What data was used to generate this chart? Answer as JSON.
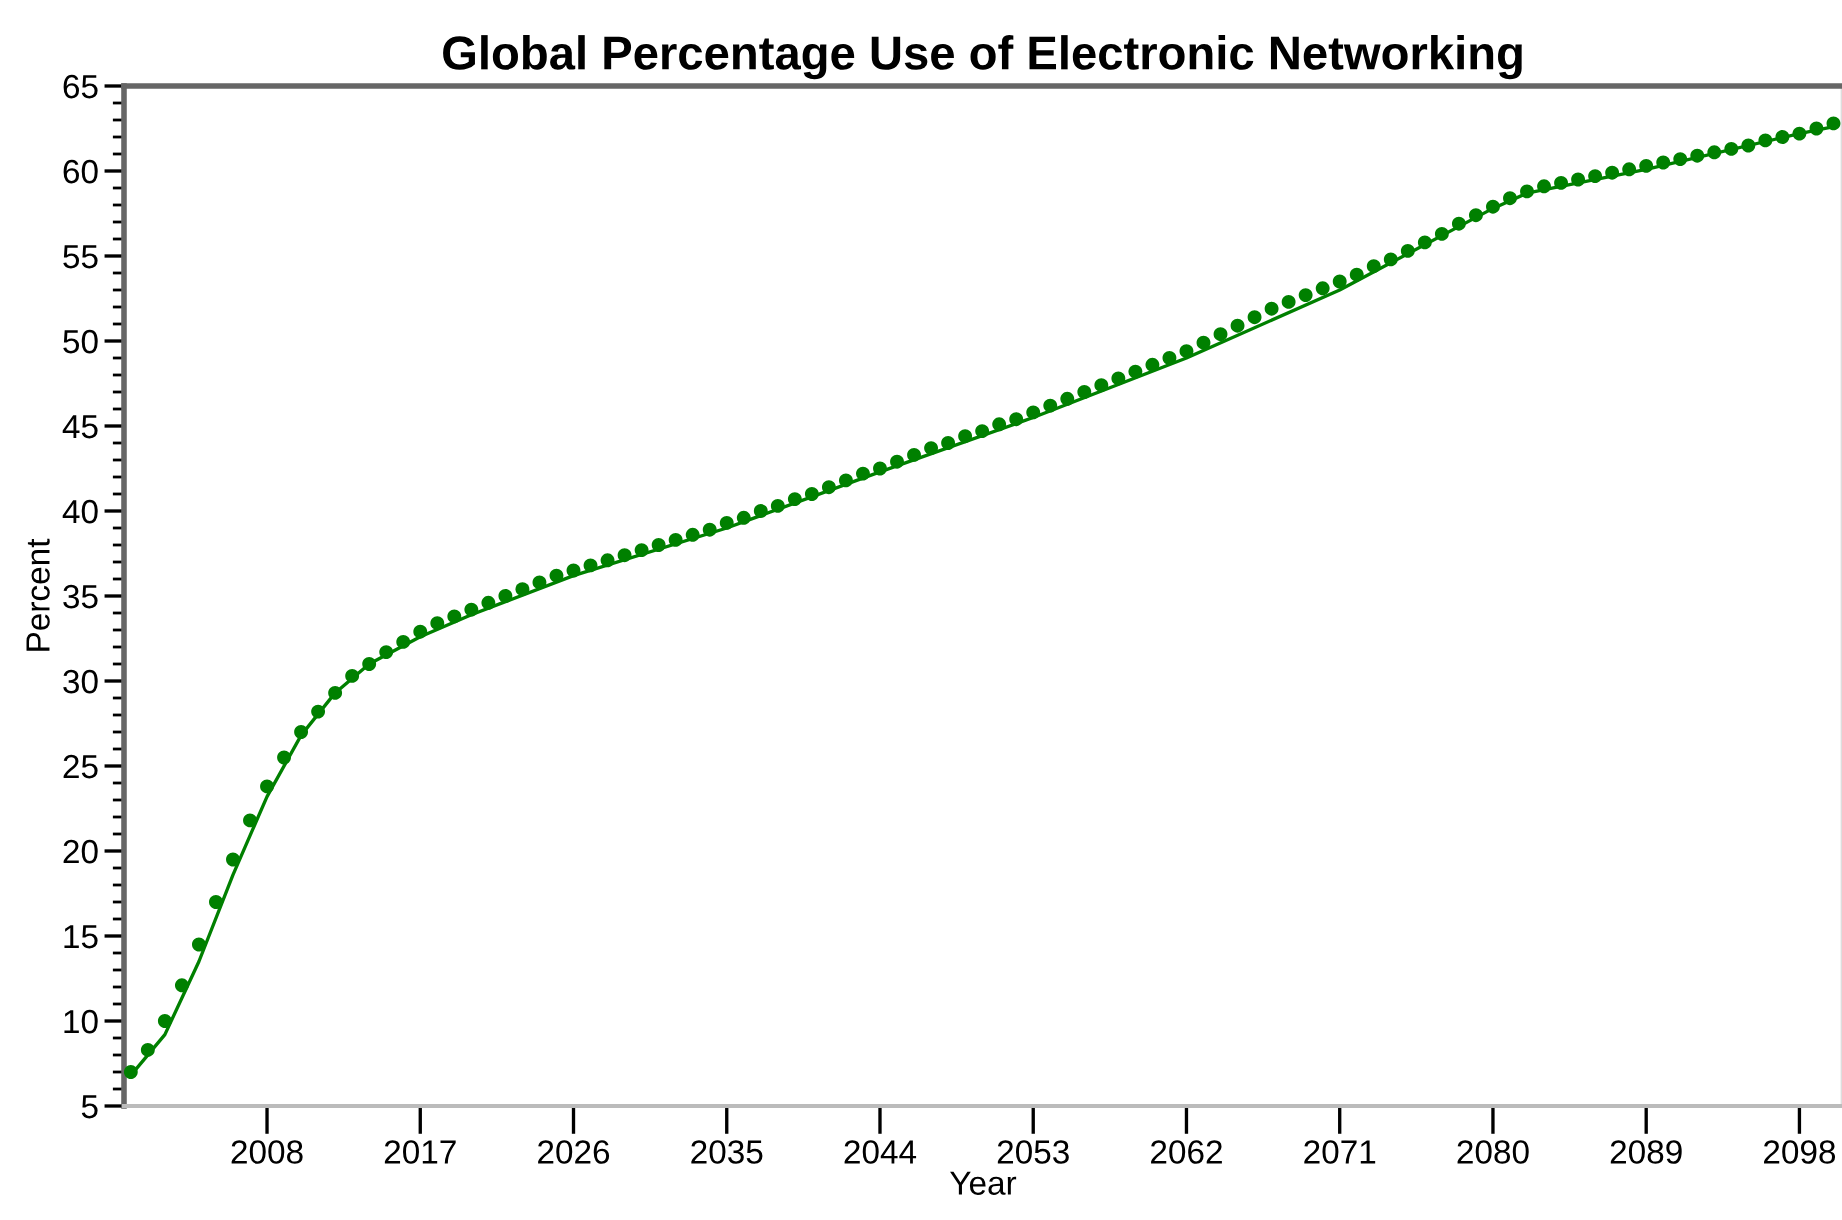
{
  "chart_data": {
    "type": "scatter",
    "title": "Global Percentage Use of Electronic Networking",
    "xlabel": "Year",
    "ylabel": "Percent",
    "xlim": [
      1999.6,
      2100.5
    ],
    "xticks": [
      2008,
      2017,
      2026,
      2035,
      2044,
      2053,
      2062,
      2071,
      2080,
      2089,
      2098
    ],
    "ylim": [
      5,
      65
    ],
    "yticks": [
      5,
      10,
      15,
      20,
      25,
      30,
      35,
      40,
      45,
      50,
      55,
      60,
      65
    ],
    "grid": false,
    "legend": false,
    "series": [
      {
        "type": "line",
        "color": "#008000",
        "line_style": "solid",
        "marker": "none",
        "x": [
          2000,
          2002,
          2004,
          2006,
          2008,
          2010,
          2012,
          2014,
          2017,
          2020,
          2026,
          2035,
          2044,
          2053,
          2062,
          2071,
          2080,
          2082,
          2089,
          2098,
          2100
        ],
        "values": [
          6.8,
          9.2,
          13.5,
          18.6,
          23.2,
          26.8,
          29.3,
          31.0,
          32.6,
          33.9,
          36.2,
          39.0,
          42.3,
          45.5,
          49.0,
          53.0,
          57.8,
          58.7,
          60.1,
          62.2,
          62.6
        ]
      },
      {
        "color": "#008000",
        "marker": "circle",
        "x": [
          2000,
          2001,
          2002,
          2003,
          2004,
          2005,
          2006,
          2007,
          2008,
          2009,
          2010,
          2011,
          2012,
          2013,
          2014,
          2015,
          2016,
          2017,
          2018,
          2019,
          2020,
          2021,
          2022,
          2023,
          2024,
          2025,
          2026,
          2027,
          2028,
          2029,
          2030,
          2031,
          2032,
          2033,
          2034,
          2035,
          2036,
          2037,
          2038,
          2039,
          2040,
          2041,
          2042,
          2043,
          2044,
          2045,
          2046,
          2047,
          2048,
          2049,
          2050,
          2051,
          2052,
          2053,
          2054,
          2055,
          2056,
          2057,
          2058,
          2059,
          2060,
          2061,
          2062,
          2063,
          2064,
          2065,
          2066,
          2067,
          2068,
          2069,
          2070,
          2071,
          2072,
          2073,
          2074,
          2075,
          2076,
          2077,
          2078,
          2079,
          2080,
          2081,
          2082,
          2083,
          2084,
          2085,
          2086,
          2087,
          2088,
          2089,
          2090,
          2091,
          2092,
          2093,
          2094,
          2095,
          2096,
          2097,
          2098,
          2099,
          2100
        ],
        "values": [
          7.0,
          8.3,
          10.0,
          12.1,
          14.5,
          17.0,
          19.5,
          21.8,
          23.8,
          25.5,
          27.0,
          28.2,
          29.3,
          30.3,
          31.0,
          31.7,
          32.3,
          32.9,
          33.4,
          33.8,
          34.2,
          34.6,
          35.0,
          35.4,
          35.8,
          36.2,
          36.5,
          36.8,
          37.1,
          37.4,
          37.7,
          38.0,
          38.3,
          38.6,
          38.9,
          39.3,
          39.6,
          40.0,
          40.3,
          40.7,
          41.0,
          41.4,
          41.8,
          42.2,
          42.5,
          42.9,
          43.3,
          43.7,
          44.0,
          44.4,
          44.7,
          45.1,
          45.4,
          45.8,
          46.2,
          46.6,
          47.0,
          47.4,
          47.8,
          48.2,
          48.6,
          49.0,
          49.4,
          49.9,
          50.4,
          50.9,
          51.4,
          51.9,
          52.3,
          52.7,
          53.1,
          53.5,
          53.9,
          54.4,
          54.8,
          55.3,
          55.8,
          56.3,
          56.9,
          57.4,
          57.9,
          58.4,
          58.8,
          59.1,
          59.3,
          59.5,
          59.7,
          59.9,
          60.1,
          60.3,
          60.5,
          60.7,
          60.9,
          61.1,
          61.3,
          61.5,
          61.8,
          62.0,
          62.2,
          62.5,
          62.8
        ]
      }
    ]
  }
}
